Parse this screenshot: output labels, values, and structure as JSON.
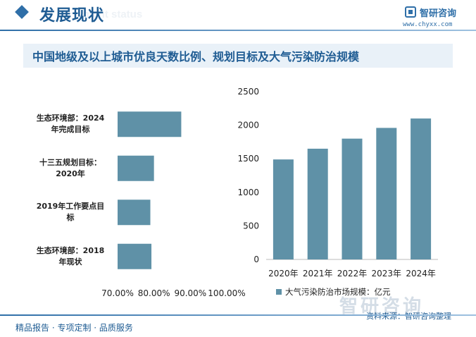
{
  "header": {
    "section_title": "发展现状",
    "section_subtitle": "ment status",
    "brand_name": "智研咨询",
    "brand_url": "www.chyxx.com"
  },
  "chart_title": "中国地级及以上城市优良天数比例、规划目标及大气污染防治规模",
  "colors": {
    "bar": "#5f91a7",
    "accent": "#1f5c93"
  },
  "chart_data": [
    {
      "type": "bar",
      "orientation": "horizontal",
      "categories": [
        "生态环境部：2024年完成目标",
        "十三五规划目标：2020年",
        "2019年工作要点目标",
        "生态环境部：2018年现状"
      ],
      "category_lines": [
        [
          "生态环境部：2024",
          "年完成目标"
        ],
        [
          "十三五规划目标：",
          "2020年"
        ],
        [
          "2019年工作要点目",
          "标"
        ],
        [
          "生态环境部：2018",
          "年现状"
        ]
      ],
      "values": [
        87.5,
        80.0,
        79.0,
        79.3
      ],
      "xlim": [
        70,
        100
      ],
      "ticks": [
        70,
        80,
        90,
        100
      ],
      "tick_labels": [
        "70.00%",
        "80.00%",
        "90.00%",
        "100.00%"
      ]
    },
    {
      "type": "bar",
      "categories": [
        "2020年",
        "2021年",
        "2022年",
        "2023年",
        "2024年"
      ],
      "series": [
        {
          "name": "大气污染防治市场规模：亿元",
          "values": [
            1490,
            1650,
            1800,
            1960,
            2100
          ]
        }
      ],
      "ylim": [
        0,
        2500
      ],
      "ticks": [
        0,
        500,
        1000,
        1500,
        2000,
        2500
      ],
      "legend": "bottom"
    }
  ],
  "footer": {
    "text": "精品报告 · 专项定制 · 品质服务",
    "source": "资料来源：智研咨询整理",
    "watermark": "智研咨询"
  }
}
